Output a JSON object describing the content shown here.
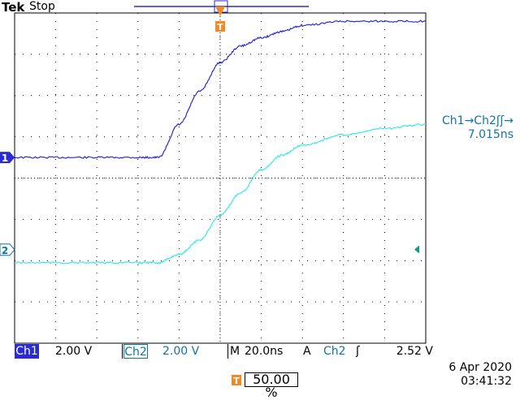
{
  "brand": {
    "left": "Tek"
  },
  "acq": {
    "status": "Stop"
  },
  "measurement": {
    "label": "Ch1→Ch2ʃʃ→",
    "value": "7.015ns"
  },
  "markers": {
    "ch1": "1",
    "ch2": "2",
    "trigger": "T"
  },
  "channels": {
    "ch1": {
      "tag": "Ch1",
      "scale": "2.00 V",
      "color": "#2b2ad4"
    },
    "ch2": {
      "tag": "Ch2",
      "scale": "2.00 V",
      "color": "#38e8e8"
    }
  },
  "timebase": {
    "label": "M",
    "value": "20.0ns"
  },
  "trigger": {
    "label": "A",
    "channel": "Ch2",
    "slope": "ʃ",
    "level": "2.52 V"
  },
  "horizontal_position": {
    "value": "50.00 %"
  },
  "datetime": {
    "date": "6 Apr  2020",
    "time": "03:41:32"
  },
  "chart_data": {
    "type": "line",
    "xlabel": "",
    "ylabel": "",
    "grid": true,
    "series": [
      {
        "name": "Ch1",
        "color": "#2b2ad4",
        "x": [
          -100,
          -80,
          -60,
          -40,
          -30,
          -20,
          -10,
          0,
          10,
          20,
          30,
          40,
          60,
          80,
          100
        ],
        "y": [
          1.0,
          1.0,
          1.0,
          1.0,
          1.0,
          2.6,
          4.2,
          5.6,
          6.4,
          6.8,
          7.1,
          7.4,
          7.6,
          7.6,
          7.6
        ]
      },
      {
        "name": "Ch2",
        "color": "#38e8e8",
        "x": [
          -100,
          -80,
          -60,
          -40,
          -30,
          -20,
          -10,
          0,
          10,
          20,
          30,
          40,
          60,
          80,
          100
        ],
        "y": [
          -4.1,
          -4.1,
          -4.1,
          -4.1,
          -4.1,
          -3.7,
          -3.0,
          -1.8,
          -0.7,
          0.4,
          1.1,
          1.6,
          2.1,
          2.4,
          2.6
        ]
      }
    ]
  }
}
